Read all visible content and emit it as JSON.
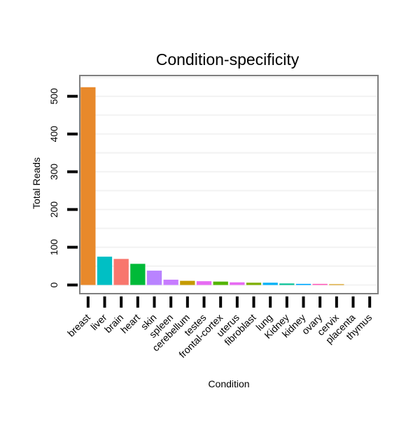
{
  "chart_data": {
    "type": "bar",
    "title": "Condition-specificity",
    "xlabel": "Condition",
    "ylabel": "Total Reads",
    "ylim": [
      -23,
      555
    ],
    "yticks": [
      0,
      100,
      200,
      300,
      400,
      500
    ],
    "grid": true,
    "legend": "none",
    "categories": [
      "breast",
      "liver",
      "brain",
      "heart",
      "skin",
      "spleen",
      "cerebellum",
      "testes",
      "frontal-cortex",
      "uterus",
      "fibroblast",
      "lung",
      "Kidney",
      "kidney",
      "ovary",
      "cervix",
      "placenta",
      "thymus"
    ],
    "values": [
      524,
      75,
      69,
      56,
      38,
      14,
      11,
      10,
      9,
      7,
      6,
      6,
      4,
      3,
      3,
      2,
      0,
      0
    ],
    "colors": [
      "#e8892b",
      "#00bfc4",
      "#f8766d",
      "#00ba38",
      "#b983ff",
      "#c77cff",
      "#c49a00",
      "#e76bf3",
      "#53b400",
      "#e76bf3",
      "#7cae00",
      "#00b0f6",
      "#00c094",
      "#00a9ff",
      "#ff62bc",
      "#d39200",
      "#fc717f",
      "#a58aff"
    ]
  }
}
